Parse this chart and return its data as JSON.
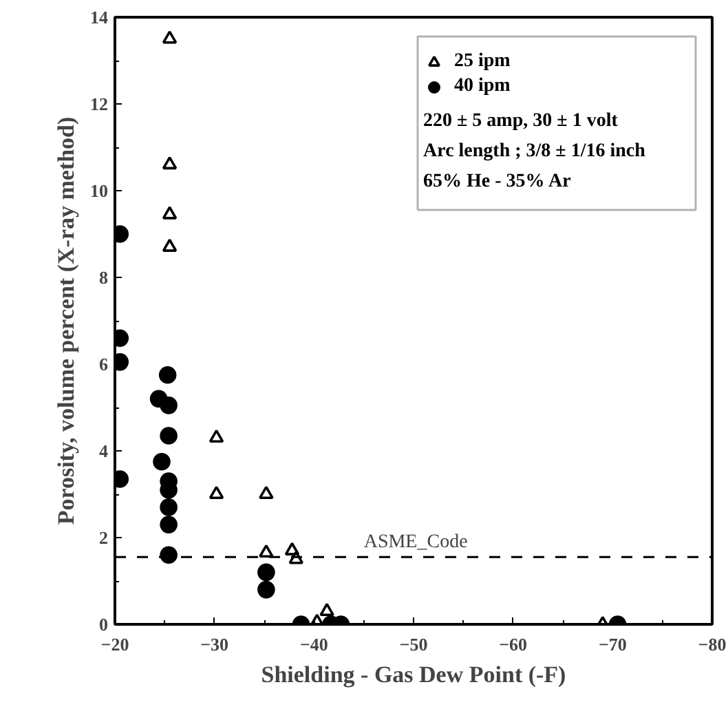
{
  "chart_data": {
    "type": "scatter",
    "xlabel": "Shielding - Gas Dew Point (-F)",
    "ylabel": "Porosity, volume percent (X-ray method)",
    "xlim": [
      -20,
      -80
    ],
    "xticks": [
      -20,
      -30,
      -40,
      -50,
      -60,
      -70,
      -80
    ],
    "ylim": [
      0,
      14
    ],
    "yticks": [
      0,
      2,
      4,
      6,
      8,
      10,
      12,
      14
    ],
    "grid": false,
    "legend": "top right",
    "series": [
      {
        "name": "25 ipm",
        "color": "#000000",
        "marker": "triangle",
        "x": [
          -25.5,
          -25.5,
          -25.5,
          -25.5,
          -30.2,
          -30.2,
          -35.2,
          -35.2,
          -37.8,
          -38.2,
          -41.3,
          -40.3,
          -69.0
        ],
        "values": [
          13.5,
          10.6,
          9.45,
          8.7,
          4.3,
          3.0,
          3.0,
          1.65,
          1.7,
          1.5,
          0.3,
          0.05,
          0
        ]
      },
      {
        "name": "40 ipm",
        "color": "#000000",
        "marker": "circle",
        "x": [
          -20.5,
          -20.5,
          -20.5,
          -20.5,
          -25.3,
          -24.4,
          -25.4,
          -25.4,
          -24.7,
          -25.4,
          -25.4,
          -25.4,
          -25.4,
          -25.4,
          -35.2,
          -35.2,
          -38.7,
          -41.7,
          -42.7,
          -70.5
        ],
        "values": [
          9.0,
          6.6,
          6.05,
          3.35,
          5.75,
          5.2,
          5.05,
          4.35,
          3.75,
          3.3,
          3.1,
          2.7,
          2.3,
          1.6,
          1.2,
          0.8,
          0,
          0,
          0,
          0
        ]
      }
    ],
    "ref_lines": [
      {
        "axis": "y",
        "value": 1.55,
        "label": "ASME_Code",
        "line_style": "dashed",
        "color": "#000000"
      }
    ],
    "annotations": [
      "220 ± 5 amp, 30 ± 1 volt",
      "Arc length ; 3/8 ± 1/16 inch",
      "65% He - 35% Ar"
    ]
  }
}
